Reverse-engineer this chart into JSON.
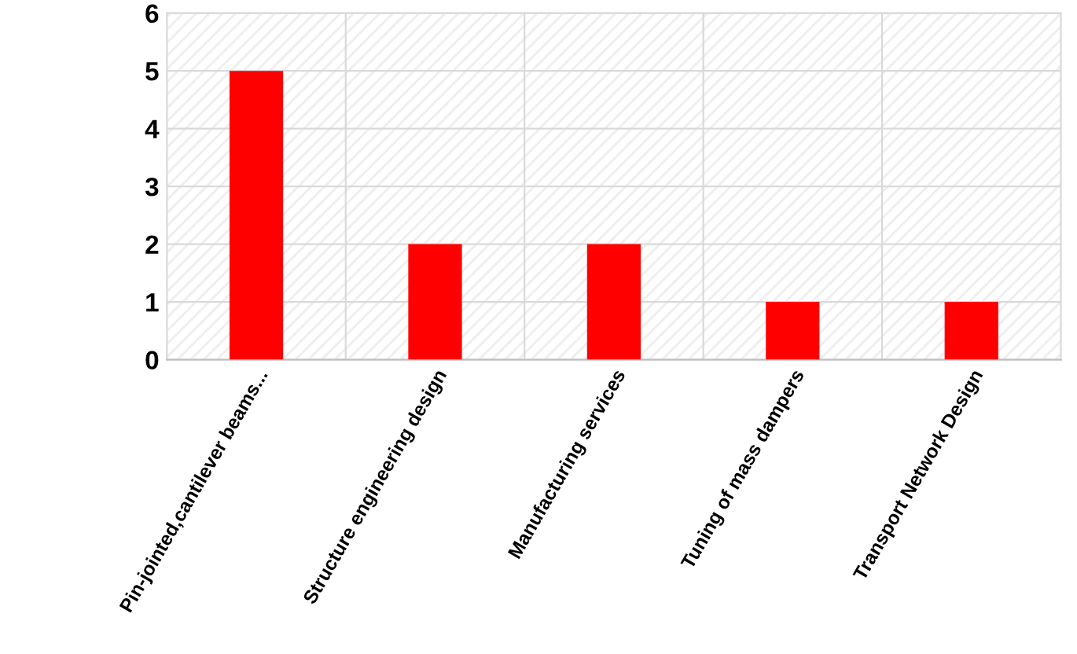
{
  "chart_data": {
    "type": "bar",
    "categories": [
      "Pin-jointed,cantilever beams...",
      "Structure engineering design",
      "Manufacturing services",
      "Tuning of mass dampers",
      "Transport Network Design"
    ],
    "values": [
      5,
      2,
      2,
      1,
      1
    ],
    "color": "#ff0000",
    "ylim": [
      0,
      6
    ],
    "yticks": [
      0,
      1,
      2,
      3,
      4,
      5,
      6
    ],
    "grid": true
  }
}
